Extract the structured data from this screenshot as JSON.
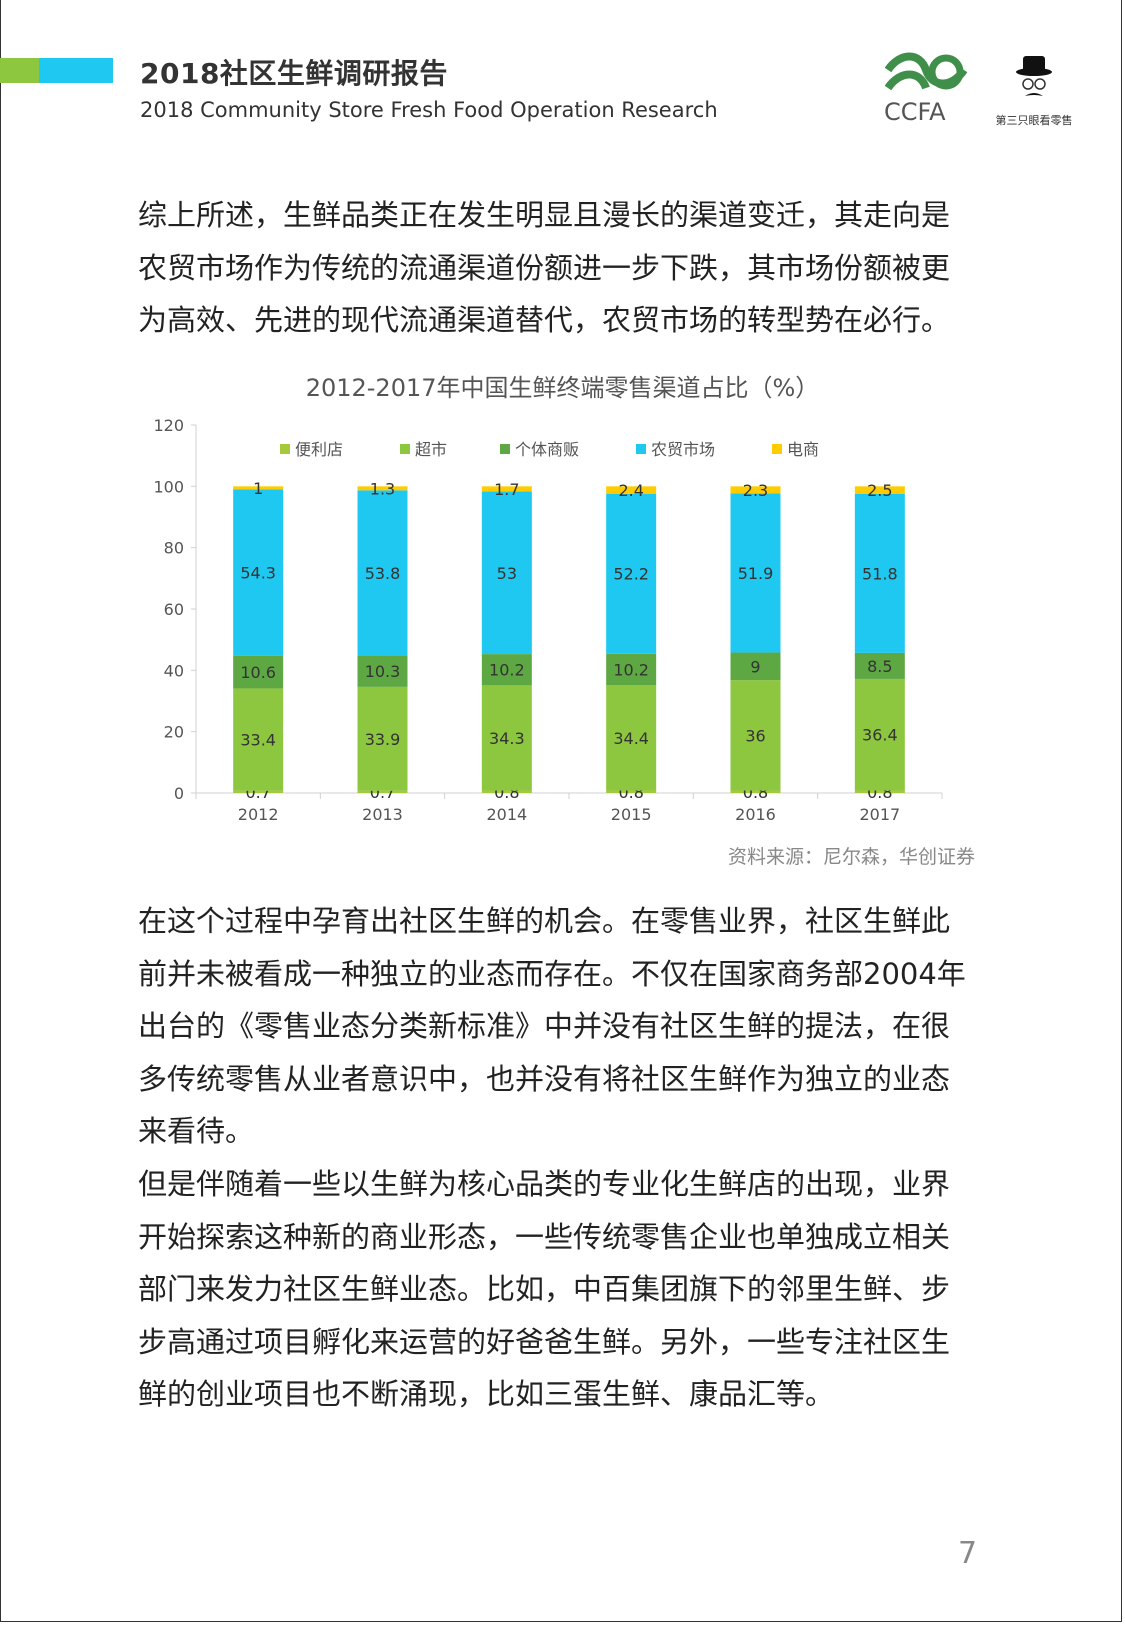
{
  "header": {
    "title": "2018社区生鲜调研报告",
    "subtitle": "2018 Community Store Fresh Food Operation Research",
    "logos": [
      {
        "name": "CCFA",
        "text": "CCFA"
      },
      {
        "name": "third-eye-retail",
        "text": "第三只眼看零售"
      }
    ],
    "accent_colors": [
      "#8dc63f",
      "#1fc8f0"
    ]
  },
  "body": {
    "paragraph1": [
      "综上所述，生鲜品类正在发生明显且漫长的渠道变迁，其走向是",
      "农贸市场作为传统的流通渠道份额进一步下跌，其市场份额被更",
      "为高效、先进的现代流通渠道替代，农贸市场的转型势在必行。"
    ],
    "paragraph2": [
      "在这个过程中孕育出社区生鲜的机会。在零售业界，社区生鲜此",
      "前并未被看成一种独立的业态而存在。不仅在国家商务部2004年",
      "出台的《零售业态分类新标准》中并没有社区生鲜的提法，在很",
      "多传统零售从业者意识中，也并没有将社区生鲜作为独立的业态",
      "来看待。"
    ],
    "paragraph3": [
      "但是伴随着一些以生鲜为核心品类的专业化生鲜店的出现，业界",
      "开始探索这种新的商业形态，一些传统零售企业也单独成立相关",
      "部门来发力社区生鲜业态。比如，中百集团旗下的邻里生鲜、步",
      "步高通过项目孵化来运营的好爸爸生鲜。另外，一些专注社区生",
      "鲜的创业项目也不断涌现，比如三蛋生鲜、康品汇等。"
    ]
  },
  "chart_data": {
    "type": "bar",
    "stacked": true,
    "title": "2012-2017年中国生鲜终端零售渠道占比（%）",
    "categories": [
      "2012",
      "2013",
      "2014",
      "2015",
      "2016",
      "2017"
    ],
    "series": [
      {
        "name": "便利店",
        "color": "#a5c93a",
        "values": [
          0.7,
          0.7,
          0.8,
          0.8,
          0.8,
          0.8
        ]
      },
      {
        "name": "超市",
        "color": "#8dc63f",
        "values": [
          33.4,
          33.9,
          34.3,
          34.4,
          36,
          36.4
        ]
      },
      {
        "name": "个体商贩",
        "color": "#5ea843",
        "values": [
          10.6,
          10.3,
          10.2,
          10.2,
          9,
          8.5
        ]
      },
      {
        "name": "农贸市场",
        "color": "#1fc8f0",
        "values": [
          54.3,
          53.8,
          53,
          52.2,
          51.9,
          51.8
        ]
      },
      {
        "name": "电商",
        "color": "#ffcc00",
        "values": [
          1,
          1.3,
          1.7,
          2.4,
          2.3,
          2.5
        ]
      }
    ],
    "yticks": [
      "0",
      "20",
      "40",
      "60",
      "80",
      "100",
      "120"
    ],
    "ylim": [
      0,
      120
    ],
    "legend": "top",
    "grid": false
  },
  "source": "资料来源：尼尔森，华创证券",
  "page_number": "7"
}
